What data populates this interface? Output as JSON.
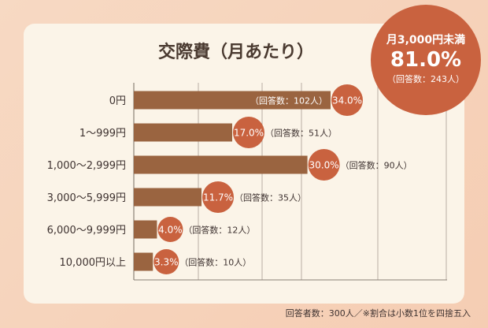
{
  "chart_data": {
    "type": "bar",
    "title": "交際費（月あたり）",
    "categories": [
      "0円",
      "1〜999円",
      "1,000〜2,999円",
      "3,000〜5,999円",
      "6,000〜9,999円",
      "10,000円以上"
    ],
    "values": [
      34.0,
      17.0,
      30.0,
      11.7,
      4.0,
      3.3
    ],
    "value_labels": [
      "34.0%",
      "17.0%",
      "30.0%",
      "11.7%",
      "4.0%",
      "3.3%"
    ],
    "counts": [
      "（回答数：102人）",
      "（回答数：51人）",
      "（回答数：90人）",
      "（回答数：35人）",
      "（回答数：12人）",
      "（回答数：10人）"
    ],
    "xlim": [
      0,
      34
    ],
    "grid": true,
    "colors": {
      "bar": "#9a6440",
      "badge": "#c9623f"
    }
  },
  "summary": {
    "label": "月3,000円未満",
    "value": "81.0%",
    "count": "（回答数：243人）"
  },
  "footer": "回答者数：300人／※割合は小数1位を四捨五入"
}
